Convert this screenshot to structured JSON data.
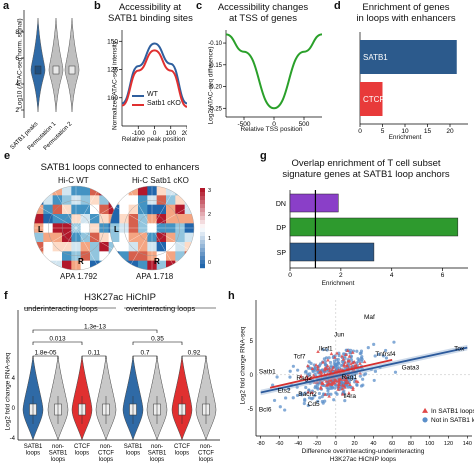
{
  "panels": {
    "a": {
      "label": "a",
      "ylabel": "Log10 (ATAC-seq norm. signal)",
      "yticks": [
        "8",
        "6",
        "4",
        "2"
      ],
      "xticks": [
        "SATB1 peaks",
        "Permutation 1",
        "Permutation 2"
      ],
      "colors": [
        "#2f6aa6",
        "#bfbfbf",
        "#bfbfbf"
      ]
    },
    "b": {
      "label": "b",
      "title": "Accessibility at\nSATB1 binding sites",
      "ylabel": "Normalized ATAC-seq intensity",
      "xlabel": "Relative peak position",
      "legend": [
        "WT",
        "Satb1 cKO"
      ],
      "colors": [
        "#2f5f9e",
        "#e03030"
      ]
    },
    "c": {
      "label": "c",
      "title": "Accessibility changes\nat TSS of genes",
      "ylabel": "Log2(ATAC-seq difference)",
      "xlabel": "Relative TSS position",
      "color": "#2aa02a"
    },
    "d": {
      "label": "d",
      "title": "Enrichment of genes\nin loops with enhancers",
      "xlabel": "Enrichment"
    },
    "e": {
      "label": "e",
      "title": "SATB1 loops connected to enhancers",
      "left_sub": "Hi-C WT",
      "right_sub": "Hi-C Satb1 cKO",
      "left_apa": "APA 1.792",
      "right_apa": "APA 1.718",
      "L": "L",
      "R": "R"
    },
    "f": {
      "label": "f",
      "title": "H3K27ac HiChIP",
      "under": "underinteracting loops",
      "over": "overinteracting loops",
      "ylabel": "Log2 fold change RNA-seq",
      "groups": [
        "SATB1\nloops",
        "non-\nSATB1\nloops",
        "CTCF\nloops",
        "non-\nCTCF\nloops",
        "SATB1\nloops",
        "non-\nSATB1\nloops",
        "CTCF\nloops",
        "non-\nCTCF\nloops"
      ],
      "pvals": [
        "1.8e-05",
        "0.013",
        "0.11",
        "1.3e-13",
        "0.7",
        "0.35",
        "0.92"
      ]
    },
    "g": {
      "label": "g",
      "title": "Overlap enrichment of T cell subset\nsignature genes at SATB1 loop anchors",
      "xlabel": "Enrichment"
    },
    "h": {
      "label": "h",
      "ylabel": "Log2 fold change RNA-seq",
      "xlabel": "Difference overinteracting-underinteracting\nH3K27ac HiChIP loops",
      "legend": [
        "In SATB1 loops",
        "Not in SATB1 loops"
      ],
      "genes": [
        "Maf",
        "Jun",
        "Ikzf1",
        "Tcf7",
        "Satb1",
        "Rag2",
        "Rag1",
        "Ets2",
        "Bach2",
        "Cd5",
        "Il4ra",
        "Bcl6",
        "Gata3",
        "Tox",
        "Tnfrsf4"
      ]
    }
  },
  "chart_data": [
    {
      "panel": "d",
      "type": "bar",
      "orientation": "horizontal",
      "categories": [
        "SATB1",
        "CTCF"
      ],
      "values": [
        21.5,
        5
      ],
      "xlim": [
        0,
        24
      ],
      "xticks": [
        0,
        5,
        10,
        15,
        20
      ],
      "colors": [
        "#2c5a8c",
        "#e83a3a"
      ]
    },
    {
      "panel": "g",
      "type": "bar",
      "orientation": "horizontal",
      "categories": [
        "DN",
        "DP",
        "SP"
      ],
      "values": [
        1.9,
        6.6,
        3.3
      ],
      "xlim": [
        0,
        7
      ],
      "xticks": [
        0,
        2,
        4,
        6
      ],
      "reference": 1,
      "colors": [
        "#8a3fc8",
        "#2e9a2e",
        "#2c5a8c"
      ]
    },
    {
      "panel": "b",
      "type": "line",
      "x": [
        -200,
        -100,
        0,
        100,
        200
      ],
      "xticks": [
        -100,
        0,
        100,
        200
      ],
      "yticks": [
        100,
        125,
        150
      ],
      "series": [
        {
          "name": "WT",
          "values": [
            95,
            128,
            148,
            130,
            95
          ]
        },
        {
          "name": "Satb1 cKO",
          "values": [
            93,
            124,
            142,
            124,
            92
          ]
        }
      ]
    },
    {
      "panel": "c",
      "type": "line",
      "x": [
        -800,
        -500,
        0,
        500,
        800
      ],
      "xticks": [
        -500,
        0,
        500
      ],
      "yticks": [
        -0.1,
        -0.15,
        -0.2,
        -0.25
      ],
      "series": [
        {
          "name": "",
          "values": [
            -0.08,
            -0.12,
            -0.25,
            -0.12,
            -0.08
          ]
        }
      ]
    },
    {
      "panel": "h",
      "type": "scatter",
      "xticks": [
        -80,
        -60,
        -40,
        -20,
        0,
        20,
        40,
        60,
        80,
        100,
        120,
        140
      ],
      "yticks": [
        5,
        0,
        -5
      ]
    }
  ]
}
